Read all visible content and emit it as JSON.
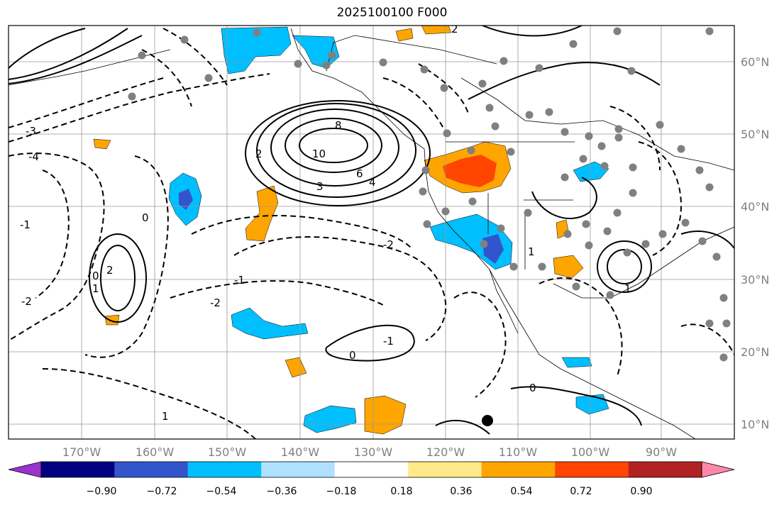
{
  "title": "2025100100 F000",
  "map": {
    "lat_labels": [
      "60°N",
      "50°N",
      "40°N",
      "30°N",
      "20°N",
      "10°N"
    ],
    "lon_labels": [
      "170°W",
      "160°W",
      "150°W",
      "140°W",
      "130°W",
      "120°W",
      "110°W",
      "100°W",
      "90°W"
    ],
    "contour_labels": [
      "8",
      "10",
      "6",
      "4",
      "3",
      "2",
      "0",
      "-1",
      "-2",
      "-3",
      "-4",
      "1",
      "2",
      "0",
      "-1",
      "-2",
      "1",
      "0",
      "-1",
      "0",
      "1",
      "-2",
      "2",
      "1"
    ]
  },
  "colorbar": {
    "colors": [
      "#9933cc",
      "#000080",
      "#3355cc",
      "#00bfff",
      "#b0e0ff",
      "#ffffff",
      "#ffe98a",
      "#ffa500",
      "#ff4500",
      "#b22222",
      "#ff88aa"
    ],
    "tick_labels": [
      "−0.90",
      "−0.72",
      "−0.54",
      "−0.36",
      "−0.18",
      "0.18",
      "0.36",
      "0.54",
      "0.72",
      "0.90"
    ]
  }
}
